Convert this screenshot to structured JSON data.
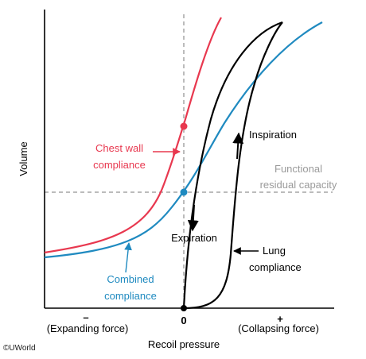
{
  "colors": {
    "chest_wall": "#e8384f",
    "combined": "#1f8ac0",
    "lung": "#000000",
    "reference": "#9a9a9a",
    "axis": "#000000"
  },
  "axes": {
    "y_label": "Volume",
    "x_label": "Recoil pressure",
    "minus_symbol": "–",
    "zero": "0",
    "plus_symbol": "+",
    "minus_caption": "(Expanding force)",
    "plus_caption": "(Collapsing force)"
  },
  "labels": {
    "chest_wall_line1": "Chest wall",
    "chest_wall_line2": "compliance",
    "frc_line1": "Functional",
    "frc_line2": "residual capacity",
    "inspiration": "Inspiration",
    "expiration": "Expiration",
    "lung_line1": "Lung",
    "lung_line2": "compliance",
    "combined_line1": "Combined",
    "combined_line2": "compliance"
  },
  "copyright": "©UWorld"
}
